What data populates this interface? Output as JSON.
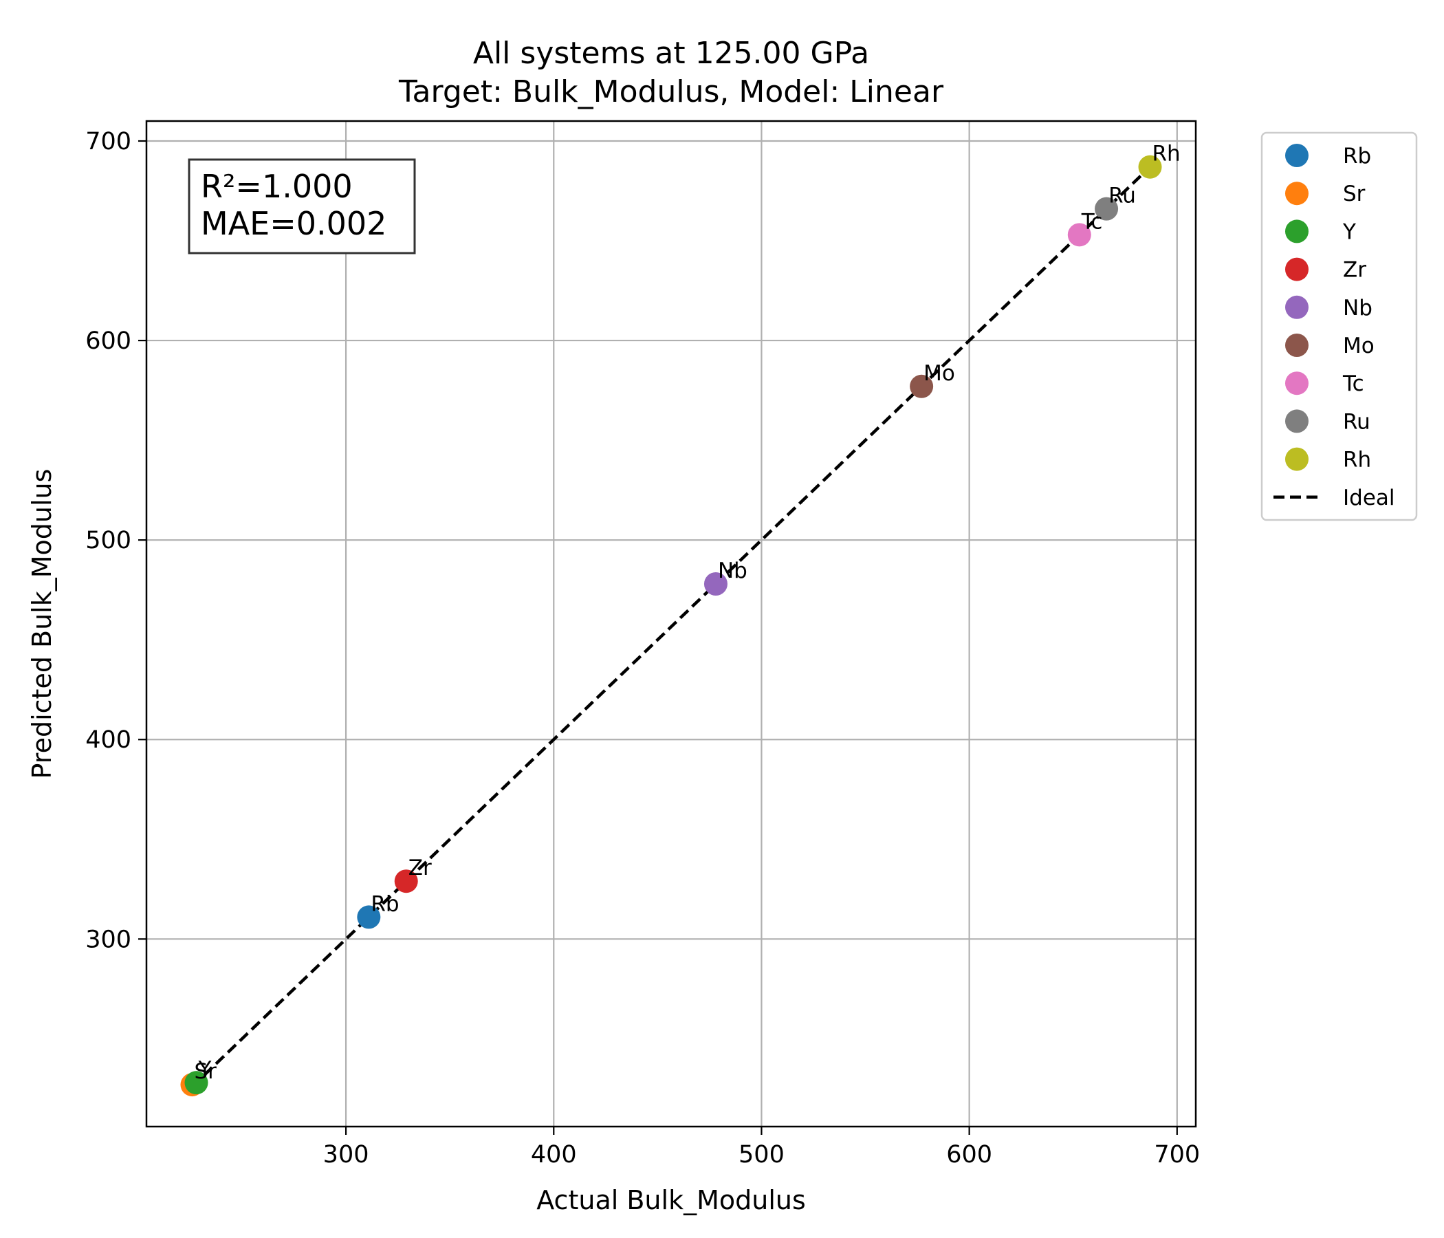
{
  "chart_data": {
    "type": "scatter",
    "title": [
      "All systems at 125.00 GPa",
      "Target: Bulk_Modulus, Model: Linear"
    ],
    "xlabel": "Actual Bulk_Modulus",
    "ylabel": "Predicted Bulk_Modulus",
    "xlim": [
      204,
      709
    ],
    "ylim": [
      206,
      710
    ],
    "xticks": [
      300,
      400,
      500,
      600,
      700
    ],
    "yticks": [
      300,
      400,
      500,
      600,
      700
    ],
    "grid": true,
    "legend_position": "outside-right",
    "stats": [
      "R²=1.000",
      "MAE=0.002"
    ],
    "series": [
      {
        "name": "Rb",
        "color": "#1f77b4",
        "x": 311,
        "y": 311,
        "label": "Rb"
      },
      {
        "name": "Sr",
        "color": "#ff7f0e",
        "x": 226,
        "y": 227,
        "label": "Sr"
      },
      {
        "name": "Y",
        "color": "#2ca02c",
        "x": 228,
        "y": 228,
        "label": "Y"
      },
      {
        "name": "Zr",
        "color": "#d62728",
        "x": 329,
        "y": 329,
        "label": "Zr"
      },
      {
        "name": "Nb",
        "color": "#9467bd",
        "x": 478,
        "y": 478,
        "label": "Nb"
      },
      {
        "name": "Mo",
        "color": "#8c564b",
        "x": 577,
        "y": 577,
        "label": "Mo"
      },
      {
        "name": "Tc",
        "color": "#e377c2",
        "x": 653,
        "y": 653,
        "label": "Tc"
      },
      {
        "name": "Ru",
        "color": "#7f7f7f",
        "x": 666,
        "y": 666,
        "label": "Ru"
      },
      {
        "name": "Rh",
        "color": "#bcbd22",
        "x": 687,
        "y": 687,
        "label": "Rh"
      }
    ],
    "ideal_line": {
      "name": "Ideal",
      "color": "#000000",
      "x": [
        226,
        687
      ],
      "y": [
        226,
        687
      ]
    }
  }
}
